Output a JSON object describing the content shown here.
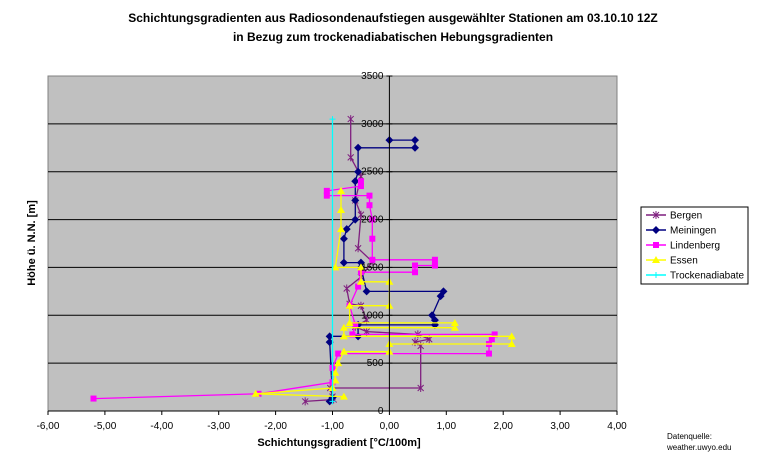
{
  "chart_data": {
    "type": "line",
    "title": [
      "Schichtungsgradienten aus Radiosondenaufstiegen ausgewählter Stationen am 03.10.10 12Z",
      "in Bezug zum trockenadiabatischen Hebungsgradienten"
    ],
    "xlabel": "Schichtungsgradient [°C/100m]",
    "ylabel": "Höhe ü. N.N. [m]",
    "xlim": [
      -6,
      4
    ],
    "ylim": [
      0,
      3500
    ],
    "xticks": [
      "-6,00",
      "-5,00",
      "-4,00",
      "-3,00",
      "-2,00",
      "-1,00",
      "0,00",
      "1,00",
      "2,00",
      "3,00",
      "4,00"
    ],
    "yticks": [
      "0",
      "500",
      "1000",
      "1500",
      "2000",
      "2500",
      "3000",
      "3500"
    ],
    "grid": "horizontal",
    "legend_position": "right",
    "plot_background": "#c0c0c0",
    "source_note": [
      "Datenquelle:",
      "weather.uwyo.edu"
    ],
    "series": [
      {
        "name": "Bergen",
        "color": "#7f1f7f",
        "marker": "star",
        "points": [
          [
            -1.48,
            100
          ],
          [
            -0.98,
            120
          ],
          [
            -1.0,
            150
          ],
          [
            -1.04,
            240
          ],
          [
            0.55,
            240
          ],
          [
            0.55,
            680
          ],
          [
            0.45,
            720
          ],
          [
            0.7,
            750
          ],
          [
            0.5,
            800
          ],
          [
            -0.4,
            830
          ],
          [
            -0.6,
            880
          ],
          [
            -0.4,
            950
          ],
          [
            -0.5,
            1100
          ],
          [
            -0.7,
            1120
          ],
          [
            -0.75,
            1280
          ],
          [
            -0.5,
            1400
          ],
          [
            -0.3,
            1560
          ],
          [
            -0.55,
            1700
          ],
          [
            -0.5,
            2050
          ],
          [
            -0.6,
            2200
          ],
          [
            -0.5,
            2450
          ],
          [
            -0.68,
            2650
          ],
          [
            -0.68,
            3050
          ]
        ]
      },
      {
        "name": "Meiningen",
        "color": "#000080",
        "marker": "diamond",
        "points": [
          [
            -1.05,
            100
          ],
          [
            -1.0,
            140
          ],
          [
            -1.05,
            720
          ],
          [
            -1.05,
            780
          ],
          [
            -0.55,
            780
          ],
          [
            -0.55,
            900
          ],
          [
            0.8,
            900
          ],
          [
            0.8,
            950
          ],
          [
            0.75,
            1000
          ],
          [
            0.9,
            1200
          ],
          [
            0.95,
            1250
          ],
          [
            -0.4,
            1250
          ],
          [
            -0.5,
            1500
          ],
          [
            -0.5,
            1550
          ],
          [
            -0.8,
            1550
          ],
          [
            -0.8,
            1800
          ],
          [
            -0.75,
            1900
          ],
          [
            -0.6,
            2000
          ],
          [
            -0.6,
            2200
          ],
          [
            -0.6,
            2400
          ],
          [
            -0.55,
            2500
          ],
          [
            -0.55,
            2750
          ],
          [
            0.45,
            2750
          ],
          [
            0.45,
            2830
          ],
          [
            0.0,
            2830
          ]
        ]
      },
      {
        "name": "Lindenberg",
        "color": "#ff00ff",
        "marker": "square",
        "points": [
          [
            -5.2,
            130
          ],
          [
            -2.3,
            180
          ],
          [
            -1.0,
            300
          ],
          [
            -1.0,
            450
          ],
          [
            -0.9,
            600
          ],
          [
            1.75,
            600
          ],
          [
            1.75,
            700
          ],
          [
            1.8,
            750
          ],
          [
            1.85,
            800
          ],
          [
            -0.65,
            800
          ],
          [
            -0.6,
            900
          ],
          [
            -0.7,
            1100
          ],
          [
            -0.55,
            1300
          ],
          [
            -0.5,
            1450
          ],
          [
            0.45,
            1450
          ],
          [
            0.45,
            1520
          ],
          [
            0.8,
            1520
          ],
          [
            0.8,
            1580
          ],
          [
            -0.3,
            1580
          ],
          [
            -0.3,
            1800
          ],
          [
            -0.3,
            2000
          ],
          [
            -0.35,
            2150
          ],
          [
            -0.35,
            2250
          ],
          [
            -1.1,
            2250
          ],
          [
            -1.1,
            2300
          ],
          [
            -0.5,
            2350
          ],
          [
            -0.5,
            2400
          ]
        ]
      },
      {
        "name": "Essen",
        "color": "#ffff00",
        "marker": "triangle",
        "points": [
          [
            -0.8,
            150
          ],
          [
            -2.35,
            180
          ],
          [
            -1.0,
            240
          ],
          [
            -0.95,
            320
          ],
          [
            -0.95,
            400
          ],
          [
            -0.9,
            500
          ],
          [
            -0.8,
            620
          ],
          [
            0.0,
            620
          ],
          [
            0.0,
            700
          ],
          [
            2.15,
            700
          ],
          [
            2.15,
            780
          ],
          [
            -0.8,
            780
          ],
          [
            -0.8,
            870
          ],
          [
            1.15,
            870
          ],
          [
            1.15,
            920
          ],
          [
            -0.7,
            920
          ],
          [
            -0.7,
            1100
          ],
          [
            0.0,
            1100
          ],
          [
            0.0,
            1350
          ],
          [
            -0.5,
            1350
          ],
          [
            -0.5,
            1500
          ],
          [
            -0.95,
            1500
          ],
          [
            -0.85,
            1900
          ],
          [
            -0.85,
            2100
          ],
          [
            -0.85,
            2300
          ]
        ]
      },
      {
        "name": "Trockenadiabate",
        "color": "#00ffff",
        "marker": "plus",
        "points": [
          [
            -1.0,
            100
          ],
          [
            -1.0,
            3050
          ]
        ]
      }
    ]
  }
}
